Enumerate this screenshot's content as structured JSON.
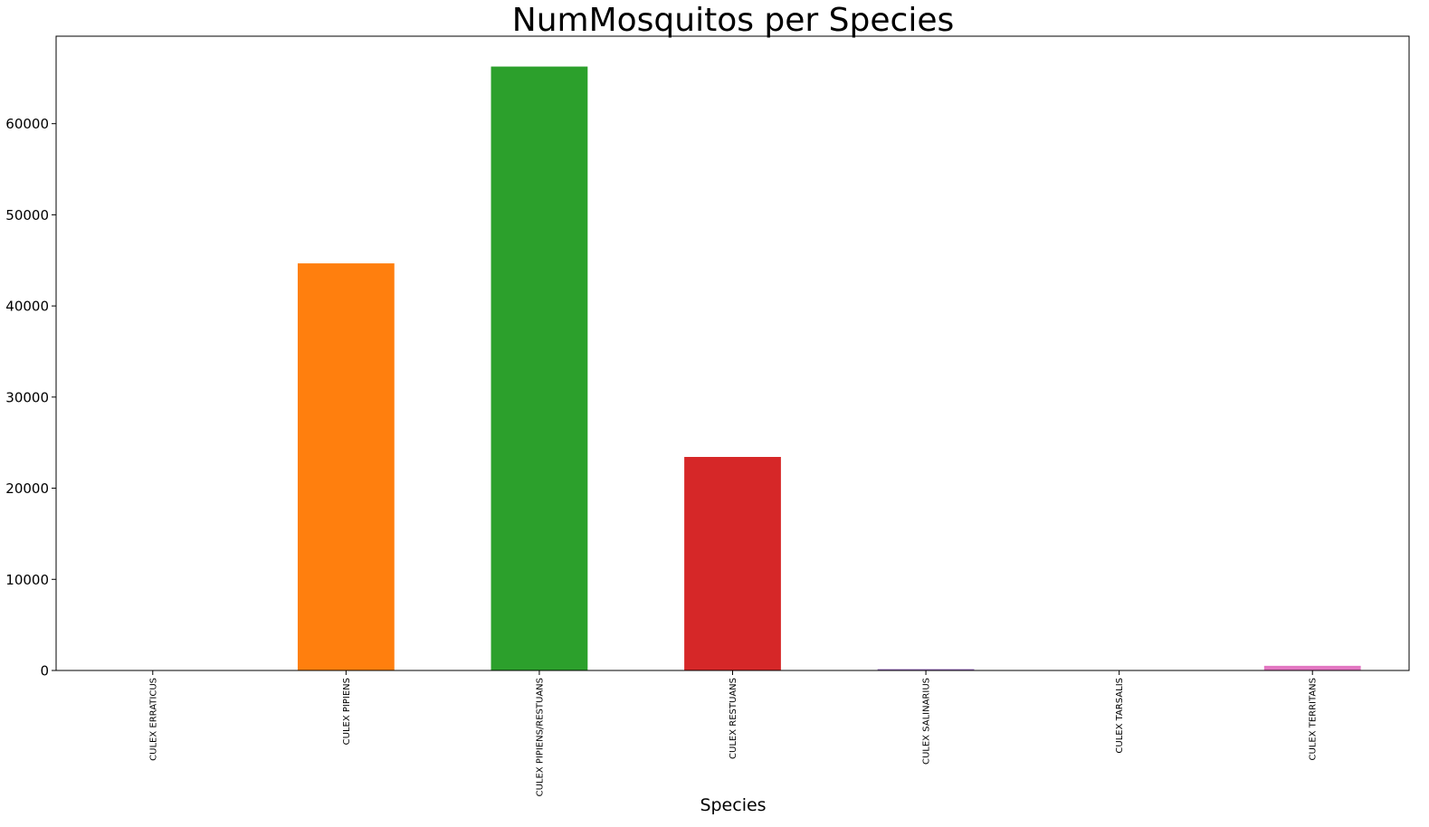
{
  "chart_data": {
    "type": "bar",
    "title": "NumMosquitos per Species",
    "xlabel": "Species",
    "ylabel": "",
    "categories": [
      "CULEX ERRATICUS",
      "CULEX PIPIENS",
      "CULEX PIPIENS/RESTUANS",
      "CULEX RESTUANS",
      "CULEX SALINARIUS",
      "CULEX TARSALIS",
      "CULEX TERRITANS"
    ],
    "values": [
      7,
      44671,
      66268,
      23431,
      145,
      7,
      510
    ],
    "colors": [
      "#1f77b4",
      "#ff7f0e",
      "#2ca02c",
      "#d62728",
      "#9467bd",
      "#8c564b",
      "#e377c2"
    ],
    "ylim": [
      0,
      69600
    ],
    "yticks": [
      0,
      10000,
      20000,
      30000,
      40000,
      50000,
      60000
    ],
    "grid": false,
    "legend": "none"
  }
}
